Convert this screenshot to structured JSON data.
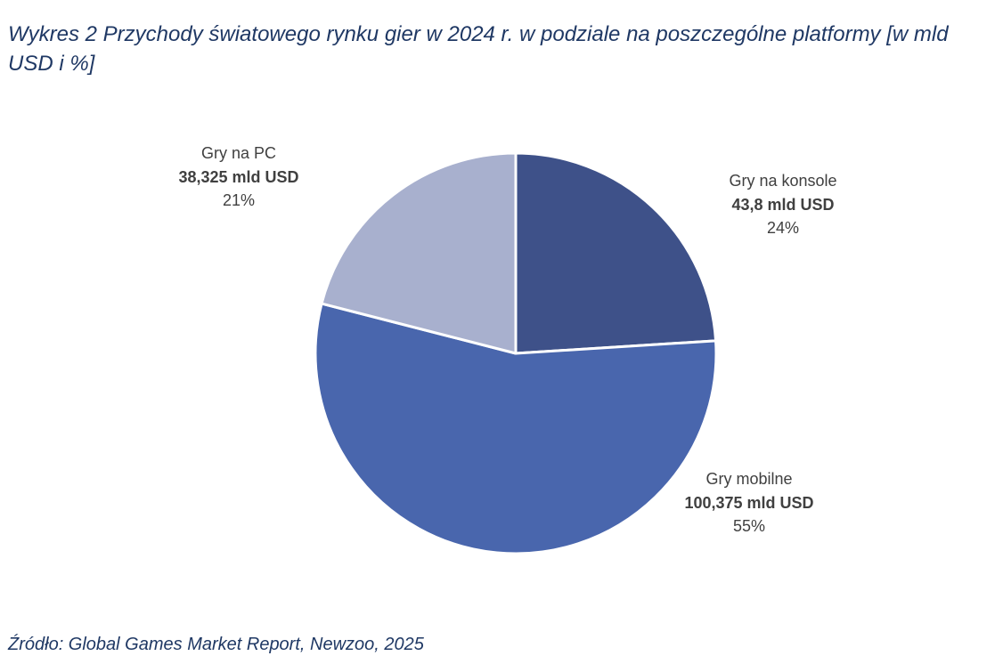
{
  "chart_data": {
    "type": "pie",
    "title": "Wykres 2 Przychody światowego rynku gier w 2024 r. w podziale na poszczególne platformy [w mld USD i %]",
    "slices": [
      {
        "label": "Gry na konsole",
        "value": 43.8,
        "value_text": "43,8 mld USD",
        "percent": 24,
        "percent_text": "24%",
        "color": "#3e5189"
      },
      {
        "label": "Gry mobilne",
        "value": 100.375,
        "value_text": "100,375 mld USD",
        "percent": 55,
        "percent_text": "55%",
        "color": "#4966ad"
      },
      {
        "label": "Gry na PC",
        "value": 38.325,
        "value_text": "38,325 mld USD",
        "percent": 21,
        "percent_text": "21%",
        "color": "#a8b0ce"
      }
    ],
    "start_angle": "12 o'clock",
    "direction": "clockwise",
    "legend": "none"
  },
  "source": "Źródło: Global Games Market Report, Newzoo, 2025"
}
